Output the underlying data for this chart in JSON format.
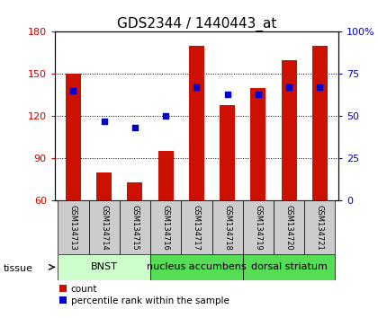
{
  "title": "GDS2344 / 1440443_at",
  "samples": [
    "GSM134713",
    "GSM134714",
    "GSM134715",
    "GSM134716",
    "GSM134717",
    "GSM134718",
    "GSM134719",
    "GSM134720",
    "GSM134721"
  ],
  "counts": [
    150,
    80,
    73,
    95,
    170,
    128,
    140,
    160,
    170
  ],
  "percentiles": [
    65,
    47,
    43,
    50,
    67,
    63,
    63,
    67,
    67
  ],
  "ylim_left": [
    60,
    180
  ],
  "ylim_right": [
    0,
    100
  ],
  "yticks_left": [
    60,
    90,
    120,
    150,
    180
  ],
  "yticks_right": [
    0,
    25,
    50,
    75,
    100
  ],
  "bar_color": "#cc1100",
  "marker_color": "#0000cc",
  "bar_width": 0.5,
  "tissue_groups": [
    {
      "label": "BNST",
      "start": 0,
      "end": 2,
      "color": "#ccffcc"
    },
    {
      "label": "nucleus accumbens",
      "start": 3,
      "end": 5,
      "color": "#55dd55"
    },
    {
      "label": "dorsal striatum",
      "start": 6,
      "end": 8,
      "color": "#55dd55"
    }
  ],
  "legend_count_label": "count",
  "legend_pct_label": "percentile rank within the sample",
  "left_tick_color": "#cc0000",
  "right_tick_color": "#0000cc",
  "title_fontsize": 11,
  "tick_fontsize": 8,
  "sample_fontsize": 6,
  "tissue_fontsize": 8
}
